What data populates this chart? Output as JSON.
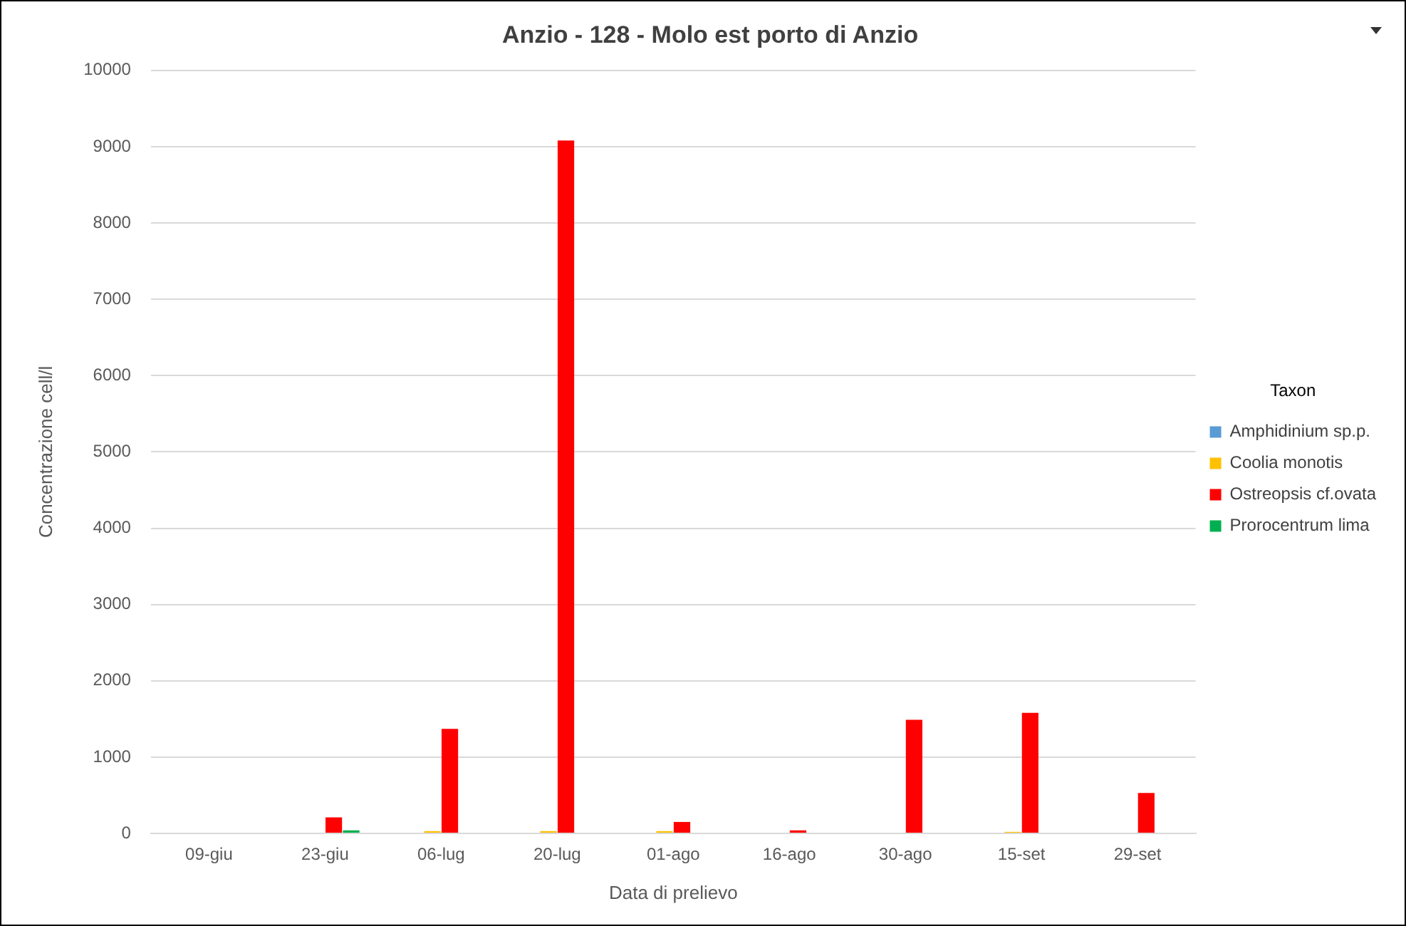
{
  "chart_data": {
    "type": "bar",
    "title": "Anzio - 128 - Molo est porto di Anzio",
    "xlabel": "Data di prelievo",
    "ylabel": "Concentrazione cell/l",
    "legend_title": "Taxon",
    "categories": [
      "09-giu",
      "23-giu",
      "06-lug",
      "20-lug",
      "01-ago",
      "16-ago",
      "30-ago",
      "15-set",
      "29-set"
    ],
    "series": [
      {
        "name": "Amphidinium sp.p.",
        "color": "#5b9bd5",
        "values": [
          null,
          null,
          null,
          null,
          null,
          null,
          null,
          null,
          null
        ]
      },
      {
        "name": "Coolia monotis",
        "color": "#ffc000",
        "values": [
          null,
          null,
          30,
          30,
          30,
          null,
          null,
          20,
          null
        ]
      },
      {
        "name": "Ostreopsis cf.ovata",
        "color": "#ff0000",
        "values": [
          null,
          210,
          1370,
          9080,
          150,
          40,
          1490,
          1580,
          530
        ]
      },
      {
        "name": "Prorocentrum lima",
        "color": "#00b050",
        "values": [
          null,
          40,
          null,
          null,
          null,
          null,
          null,
          null,
          null
        ]
      }
    ],
    "ylim": [
      0,
      10000
    ],
    "yticks": [
      0,
      1000,
      2000,
      3000,
      4000,
      5000,
      6000,
      7000,
      8000,
      9000,
      10000
    ],
    "grid": "y",
    "legend": "right"
  }
}
